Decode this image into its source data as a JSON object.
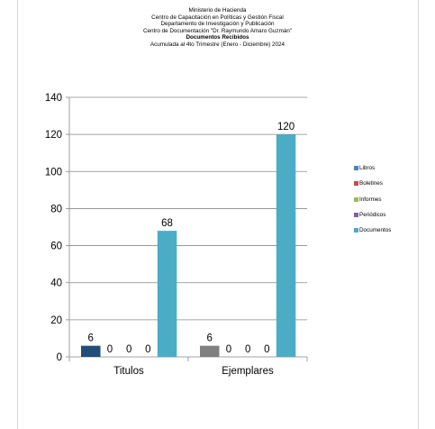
{
  "header": {
    "line1": "Ministerio de Hacienda",
    "line2": "Centro de Capacitación en Políticas y Gestión Fiscal",
    "line3": "Departamento de Investigación y Publicación",
    "line4": "Centro de Documentación \"Dr. Raymundo Amaro Guzmán\"",
    "line5": "Documentos Recibidos",
    "line6": "Acumulada al 4to Trimestre (Enero - Diciembre) 2024"
  },
  "chart_data": {
    "type": "bar",
    "title": "Documentos Recibidos",
    "categories": [
      "Titulos",
      "Ejemplares"
    ],
    "series": [
      {
        "name": "Libros",
        "values": [
          6,
          6
        ],
        "colors": [
          "#1f4e79",
          "#808080"
        ]
      },
      {
        "name": "Boletines",
        "values": [
          0,
          0
        ],
        "colors": [
          "#c0504d",
          "#c0504d"
        ]
      },
      {
        "name": "Informes",
        "values": [
          0,
          0
        ],
        "colors": [
          "#9bbb59",
          "#9bbb59"
        ]
      },
      {
        "name": "Periódicos",
        "values": [
          0,
          0
        ],
        "colors": [
          "#8064a2",
          "#8064a2"
        ]
      },
      {
        "name": "Documentos",
        "values": [
          68,
          120
        ],
        "colors": [
          "#4bacc6",
          "#4bacc6"
        ]
      }
    ],
    "legend_colors": [
      "#4f81bd",
      "#c0504d",
      "#9bbb59",
      "#8064a2",
      "#4bacc6"
    ],
    "ylim": [
      0,
      140
    ],
    "yticks": [
      0,
      20,
      40,
      60,
      80,
      100,
      120,
      140
    ],
    "grid": true,
    "legend_position": "right"
  }
}
